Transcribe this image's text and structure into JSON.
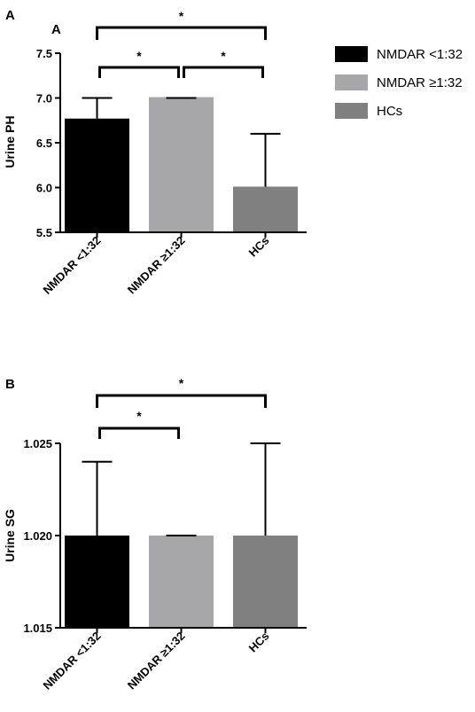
{
  "figure_labels": {
    "outer": "A"
  },
  "legend": [
    {
      "label": "NMDAR <1:32",
      "color": "#000000"
    },
    {
      "label": "NMDAR ≥1:32",
      "color": "#a7a7aa"
    },
    {
      "label": "HCs",
      "color": "#808080"
    }
  ],
  "chart_data": [
    {
      "type": "bar",
      "panel": "A",
      "categories": [
        "NMDAR <1:32",
        "NMDAR ≥1:32",
        "HCs"
      ],
      "values": [
        6.77,
        7.01,
        6.01
      ],
      "error_upper": [
        7.0,
        7.0,
        6.6
      ],
      "colors": [
        "#000000",
        "#a7a7aa",
        "#808080"
      ],
      "ylabel": "Urine PH",
      "ylim": [
        5.5,
        7.5
      ],
      "yticks": [
        "5.5",
        "6.0",
        "6.5",
        "7.0",
        "7.5"
      ],
      "yticks_values": [
        5.5,
        6.0,
        6.5,
        7.0,
        7.5
      ],
      "significance": [
        {
          "from": 0,
          "to": 1,
          "label": "*"
        },
        {
          "from": 1,
          "to": 2,
          "label": "*"
        },
        {
          "from": 0,
          "to": 2,
          "label": "*"
        }
      ]
    },
    {
      "type": "bar",
      "panel": "B",
      "categories": [
        "NMDAR <1:32",
        "NMDAR ≥1:32",
        "HCs"
      ],
      "values": [
        1.02,
        1.02,
        1.02
      ],
      "error_upper": [
        1.024,
        1.02,
        1.025
      ],
      "colors": [
        "#000000",
        "#a7a7aa",
        "#808080"
      ],
      "ylabel": "Urine SG",
      "ylim": [
        1.015,
        1.025
      ],
      "yticks": [
        "1.015",
        "1.020",
        "1.025"
      ],
      "yticks_values": [
        1.015,
        1.02,
        1.025
      ],
      "significance": [
        {
          "from": 0,
          "to": 1,
          "label": "*"
        },
        {
          "from": 0,
          "to": 2,
          "label": "*"
        }
      ]
    }
  ]
}
